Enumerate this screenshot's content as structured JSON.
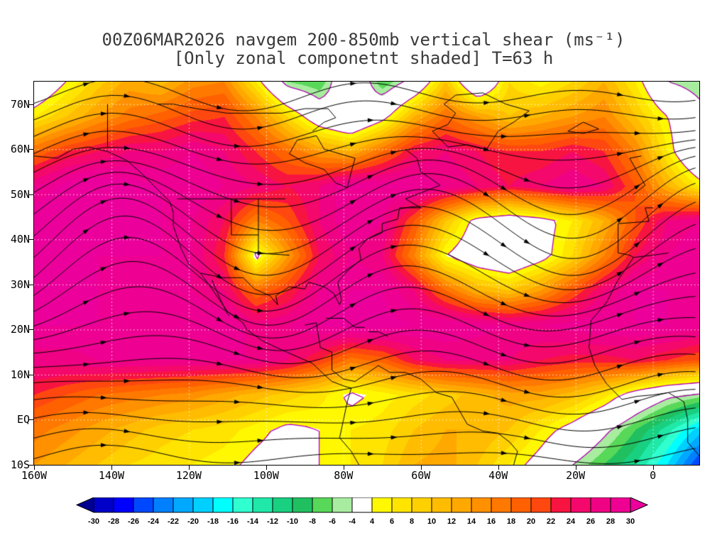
{
  "title": {
    "line1": "00Z06MAR2026 navgem 200-850mb vertical shear (ms⁻¹)",
    "line2": "[Only zonal componetnt shaded] T=63 h"
  },
  "chart_data": {
    "type": "heatmap",
    "subtype": "filled-contour map with streamlines",
    "title": "00Z06MAR2026 navgem 200-850mb vertical shear (ms⁻¹)",
    "subtitle": "[Only zonal componetnt shaded] T=63 h",
    "units": "ms⁻¹",
    "legend_position": "bottom",
    "grid": "dotted white lines, 10 deg latitude x 20 deg longitude",
    "map": {
      "lon_min": -160,
      "lon_max": 12,
      "lat_min": -10,
      "lat_max": 75
    },
    "x_axis": {
      "ticks": [
        {
          "lon": -160,
          "label": "160W"
        },
        {
          "lon": -140,
          "label": "140W"
        },
        {
          "lon": -120,
          "label": "120W"
        },
        {
          "lon": -100,
          "label": "100W"
        },
        {
          "lon": -80,
          "label": "80W"
        },
        {
          "lon": -60,
          "label": "60W"
        },
        {
          "lon": -40,
          "label": "40W"
        },
        {
          "lon": -20,
          "label": "20W"
        },
        {
          "lon": 0,
          "label": "0"
        }
      ]
    },
    "y_axis": {
      "ticks": [
        {
          "lat": 70,
          "label": "70N"
        },
        {
          "lat": 60,
          "label": "60N"
        },
        {
          "lat": 50,
          "label": "50N"
        },
        {
          "lat": 40,
          "label": "40N"
        },
        {
          "lat": 30,
          "label": "30N"
        },
        {
          "lat": 20,
          "label": "20N"
        },
        {
          "lat": 10,
          "label": "10N"
        },
        {
          "lat": 0,
          "label": "EQ"
        },
        {
          "lat": -10,
          "label": "10S"
        }
      ]
    },
    "colorbar": {
      "levels": [
        -30,
        -28,
        -26,
        -24,
        -22,
        -20,
        -18,
        -16,
        -14,
        -12,
        -10,
        -8,
        -6,
        -4,
        4,
        6,
        8,
        10,
        12,
        14,
        16,
        18,
        20,
        22,
        24,
        26,
        28,
        30
      ],
      "labels": [
        "-30",
        "-28",
        "-26",
        "-24",
        "-22",
        "-20",
        "-18",
        "-16",
        "-14",
        "-12",
        "-10",
        "-8",
        "-6",
        "-4",
        "4",
        "6",
        "8",
        "10",
        "12",
        "14",
        "16",
        "18",
        "20",
        "22",
        "24",
        "26",
        "28",
        "30"
      ],
      "colors": [
        "#000090",
        "#0000c8",
        "#0000ff",
        "#0048ff",
        "#0080ff",
        "#00a8ff",
        "#00d0ff",
        "#00ffff",
        "#30ffd0",
        "#20e8a8",
        "#18d080",
        "#20c060",
        "#58d858",
        "#a8eca0",
        "#ffffff",
        "#fff800",
        "#ffe400",
        "#ffd000",
        "#ffbc00",
        "#ffa800",
        "#ff9000",
        "#ff7800",
        "#ff6000",
        "#ff4810",
        "#f81440",
        "#f4086c",
        "#f00284",
        "#ee0092",
        "#ec009c"
      ]
    },
    "field": {
      "description": "Zonal component of 200-850mb vertical shear (m/s), coarse grid estimated from shading; rows north to south",
      "lats": [
        75,
        67.3,
        59.5,
        51.8,
        44.1,
        36.4,
        28.6,
        20.9,
        13.2,
        5.5,
        -2.3,
        -10
      ],
      "lons": [
        -160,
        -151.8,
        -143.6,
        -135.4,
        -127.2,
        -119,
        -110.8,
        -102.6,
        -94.4,
        -86.2,
        -78,
        -69.8,
        -61.6,
        -53.4,
        -45.2,
        -37,
        -28.8,
        -20.6,
        -12.4,
        -4.2,
        3.9,
        12
      ],
      "values": [
        [
          -2,
          4,
          9,
          13,
          11,
          15,
          16,
          6,
          -6,
          -8,
          2,
          -8,
          -2,
          10,
          -4,
          8,
          5,
          8,
          12,
          6,
          -4,
          -6
        ],
        [
          6,
          10,
          14,
          17,
          19,
          21,
          22,
          16,
          8,
          0,
          -4,
          2,
          12,
          18,
          14,
          10,
          12,
          14,
          16,
          10,
          4,
          -2
        ],
        [
          18,
          22,
          24,
          26,
          26,
          28,
          26,
          22,
          18,
          14,
          12,
          18,
          24,
          26,
          24,
          22,
          22,
          24,
          22,
          16,
          6,
          -4
        ],
        [
          28,
          31,
          32,
          31,
          30,
          30,
          28,
          26,
          24,
          26,
          30,
          30,
          30,
          28,
          26,
          24,
          26,
          28,
          26,
          20,
          12,
          6
        ],
        [
          32,
          32,
          32,
          32,
          30,
          28,
          24,
          16,
          20,
          26,
          30,
          28,
          20,
          10,
          2,
          0,
          2,
          6,
          12,
          20,
          26,
          28
        ],
        [
          32,
          32,
          30,
          30,
          30,
          28,
          22,
          2,
          14,
          24,
          28,
          26,
          16,
          4,
          0,
          -2,
          2,
          8,
          16,
          24,
          28,
          30
        ],
        [
          30,
          30,
          30,
          28,
          28,
          28,
          26,
          18,
          22,
          28,
          30,
          30,
          26,
          18,
          12,
          10,
          14,
          20,
          26,
          30,
          30,
          30
        ],
        [
          30,
          30,
          30,
          30,
          30,
          30,
          30,
          27,
          28,
          30,
          31,
          31,
          30,
          30,
          29,
          28,
          28,
          29,
          30,
          30,
          30,
          29
        ],
        [
          27,
          27,
          28,
          28,
          28,
          28,
          28,
          28,
          26,
          22,
          17,
          19,
          24,
          26,
          26,
          26,
          24,
          23,
          23,
          24,
          22,
          20
        ],
        [
          22,
          20,
          18,
          17,
          16,
          15,
          13,
          11,
          9,
          7,
          3,
          5,
          7,
          9,
          11,
          13,
          13,
          11,
          7,
          1,
          -3,
          -5
        ],
        [
          17,
          15,
          13,
          11,
          9,
          8,
          7,
          5,
          3,
          4,
          6,
          7,
          10,
          12,
          12,
          10,
          6,
          2,
          -3,
          -8,
          -13,
          -19
        ],
        [
          14,
          12,
          10,
          8,
          7,
          6,
          5,
          3,
          2,
          4,
          6,
          8,
          12,
          13,
          10,
          6,
          2,
          -4,
          -8,
          -12,
          -18,
          -26
        ]
      ]
    },
    "overlay": {
      "streamline_color": "#000000",
      "contour_color": "#b400b4",
      "contour_levels": [
        -4,
        4
      ],
      "coastline_color": "#000000",
      "gridline_color": "#ffffff"
    }
  }
}
